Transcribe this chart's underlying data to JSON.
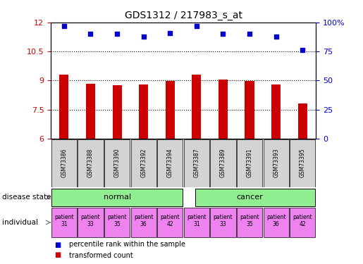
{
  "title": "GDS1312 / 217983_s_at",
  "samples": [
    "GSM73386",
    "GSM73388",
    "GSM73390",
    "GSM73392",
    "GSM73394",
    "GSM73387",
    "GSM73389",
    "GSM73391",
    "GSM73393",
    "GSM73395"
  ],
  "bar_values": [
    9.3,
    8.85,
    8.75,
    8.8,
    8.97,
    9.3,
    9.05,
    8.97,
    8.8,
    7.8
  ],
  "dot_values_pct": [
    97,
    90,
    90,
    88,
    91,
    97,
    90,
    90,
    88,
    76
  ],
  "bar_color": "#cc0000",
  "dot_color": "#0000cc",
  "ylim": [
    6,
    12
  ],
  "yticks_left": [
    6,
    7.5,
    9,
    10.5,
    12
  ],
  "yticks_right_pct": [
    0,
    25,
    50,
    75,
    100
  ],
  "ytick_labels_right": [
    "0",
    "25",
    "50",
    "75",
    "100%"
  ],
  "hlines": [
    7.5,
    9.0,
    10.5
  ],
  "disease_state_split": 5,
  "normal_color": "#90ee90",
  "cancer_color": "#90ee90",
  "individual_color": "#ee82ee",
  "sample_box_color": "#d3d3d3",
  "patients": [
    "patient\n31",
    "patient\n33",
    "patient\n35",
    "patient\n36",
    "patient\n42",
    "patient\n31",
    "patient\n33",
    "patient\n35",
    "patient\n36",
    "patient\n42"
  ],
  "legend_bar_label": "transformed count",
  "legend_dot_label": "percentile rank within the sample",
  "label_disease_state": "disease state",
  "label_individual": "individual",
  "bar_width": 0.35
}
